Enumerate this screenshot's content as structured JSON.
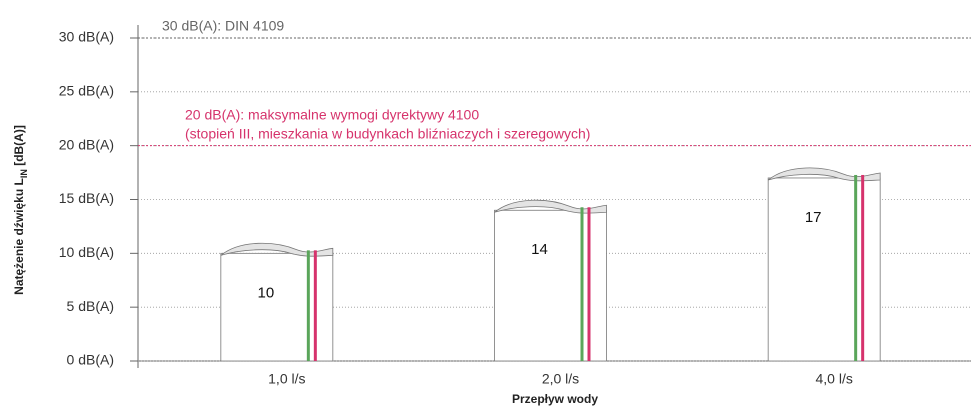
{
  "chart_data": {
    "type": "bar",
    "categories": [
      "1,0 l/s",
      "2,0 l/s",
      "4,0 l/s"
    ],
    "values": [
      10,
      14,
      17
    ],
    "color": "#ffffff",
    "xlabel": "Przepływ wody",
    "ylabel": {
      "text": "Natężenie dźwięku L",
      "subscript": "IN",
      "suffix": " [dB(A)]"
    },
    "ylim": [
      0,
      30
    ],
    "yticks": [
      {
        "value": 0,
        "label": "0 dB(A)"
      },
      {
        "value": 5,
        "label": "5 dB(A)"
      },
      {
        "value": 10,
        "label": "10 dB(A)"
      },
      {
        "value": 15,
        "label": "15 dB(A)"
      },
      {
        "value": 20,
        "label": "20 dB(A)"
      },
      {
        "value": 25,
        "label": "25 dB(A)"
      },
      {
        "value": 30,
        "label": "30 dB(A)"
      }
    ],
    "grid": true,
    "reference_lines": [
      {
        "value": 30,
        "color": "#666666",
        "label": [
          "30 dB(A): DIN 4109"
        ]
      },
      {
        "value": 20,
        "color": "#d6336c",
        "label": [
          "20 dB(A): maksymalne wymogi dyrektywy 4100",
          "(stopień III, mieszkania w budynkach bliźniaczych i szeregowych)"
        ]
      }
    ]
  }
}
